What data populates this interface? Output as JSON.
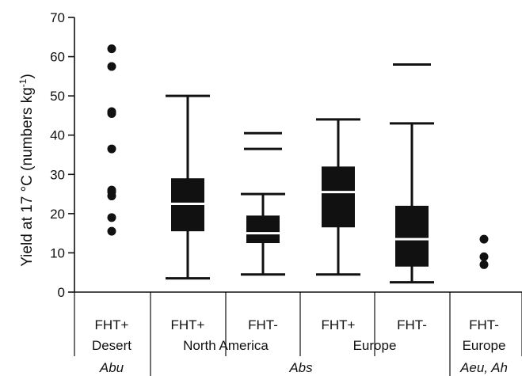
{
  "chart_data": {
    "type": "box",
    "ylabel": "Yield at 17 °C (numbers kg",
    "ylabel_sup": "-1",
    "ylabel_close": ")",
    "ylim": [
      0,
      70
    ],
    "yticks": [
      "0",
      "10",
      "20",
      "30",
      "40",
      "50",
      "60",
      "70"
    ],
    "categories": [
      {
        "top": "FHT+",
        "sub": "Desert",
        "style": "points",
        "points": [
          62,
          57.5,
          46,
          45.5,
          36.5,
          26,
          25.5,
          24.5,
          19,
          15.5
        ]
      },
      {
        "top": "FHT+",
        "sub": "",
        "style": "box",
        "whisker_low": 3.5,
        "q1": 15.5,
        "median": 22.5,
        "q3": 29,
        "whisker_high": 50,
        "outliers": []
      },
      {
        "top": "FHT-",
        "sub": "",
        "style": "box",
        "whisker_low": 4.5,
        "q1": 12.5,
        "median": 15,
        "q3": 19.5,
        "whisker_high": 25,
        "outliers": [
          36.5,
          40.5
        ]
      },
      {
        "top": "FHT+",
        "sub": "",
        "style": "box",
        "whisker_low": 4.5,
        "q1": 16.5,
        "median": 25.5,
        "q3": 32,
        "whisker_high": 44,
        "outliers": []
      },
      {
        "top": "FHT-",
        "sub": "",
        "style": "box",
        "whisker_low": 2.5,
        "q1": 6.5,
        "median": 13.5,
        "q3": 22,
        "whisker_high": 43,
        "outliers": [
          58
        ]
      },
      {
        "top": "FHT-",
        "sub": "Europe",
        "style": "points",
        "points": [
          13.5,
          9,
          7
        ]
      }
    ],
    "region_labels": [
      {
        "text": "North America"
      },
      {
        "text": "Europe"
      }
    ],
    "group_labels": [
      {
        "text": "Abu"
      },
      {
        "text": "Abs"
      },
      {
        "text": "Aeu, Ah"
      }
    ]
  }
}
